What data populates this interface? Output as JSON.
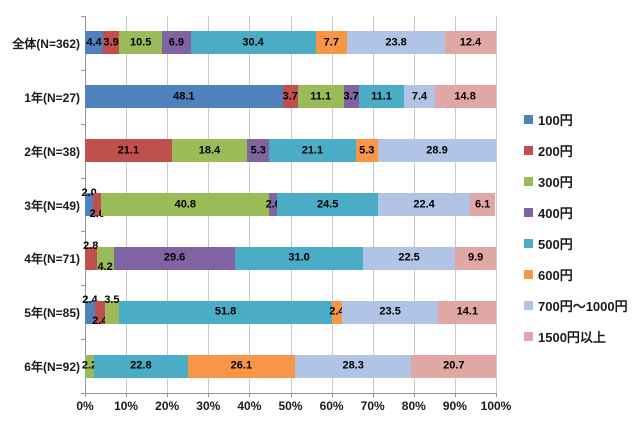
{
  "chart_data": {
    "type": "bar",
    "orientation": "horizontal",
    "stacked": true,
    "unit": "percent",
    "title": "",
    "x_axis": {
      "min": 0,
      "max": 100,
      "grid": true,
      "ticks": [
        "0%",
        "10%",
        "20%",
        "30%",
        "40%",
        "50%",
        "60%",
        "70%",
        "80%",
        "90%",
        "100%"
      ]
    },
    "legend": {
      "position": "right",
      "items": [
        {
          "label": "100円",
          "color": "#4F81BD"
        },
        {
          "label": "200円",
          "color": "#C0504D"
        },
        {
          "label": "300円",
          "color": "#9BBB59"
        },
        {
          "label": "400円",
          "color": "#8064A2"
        },
        {
          "label": "500円",
          "color": "#4BACC6"
        },
        {
          "label": "600円",
          "color": "#F79646"
        },
        {
          "label": "700円～1000円",
          "color": "#B1C4E6"
        },
        {
          "label": "1500円以上",
          "color": "#E0A7A5"
        }
      ]
    },
    "rows": [
      {
        "category": "全体(N=362)",
        "segments": [
          {
            "series": "100円",
            "value": 4.4,
            "label": "4.4"
          },
          {
            "series": "200円",
            "value": 3.9,
            "label": "3.9"
          },
          {
            "series": "300円",
            "value": 10.5,
            "label": "10.5"
          },
          {
            "series": "400円",
            "value": 6.9,
            "label": "6.9"
          },
          {
            "series": "500円",
            "value": 30.4,
            "label": "30.4"
          },
          {
            "series": "600円",
            "value": 7.7,
            "label": "7.7"
          },
          {
            "series": "700円～1000円",
            "value": 23.8,
            "label": "23.8"
          },
          {
            "series": "1500円以上",
            "value": 12.4,
            "label": "12.4"
          }
        ]
      },
      {
        "category": "1年(N=27)",
        "segments": [
          {
            "series": "100円",
            "value": 48.1,
            "label": "48.1"
          },
          {
            "series": "200円",
            "value": 3.7,
            "label": "3.7"
          },
          {
            "series": "300円",
            "value": 11.1,
            "label": "11.1"
          },
          {
            "series": "400円",
            "value": 3.7,
            "label": "3.7"
          },
          {
            "series": "500円",
            "value": 11.1,
            "label": "11.1"
          },
          {
            "series": "700円～1000円",
            "value": 7.4,
            "label": "7.4"
          },
          {
            "series": "1500円以上",
            "value": 14.8,
            "label": "14.8"
          }
        ]
      },
      {
        "category": "2年(N=38)",
        "segments": [
          {
            "series": "200円",
            "value": 21.1,
            "label": "21.1"
          },
          {
            "series": "300円",
            "value": 18.4,
            "label": "18.4"
          },
          {
            "series": "400円",
            "value": 5.3,
            "label": "5.3"
          },
          {
            "series": "500円",
            "value": 21.1,
            "label": "21.1"
          },
          {
            "series": "600円",
            "value": 5.3,
            "label": "5.3"
          },
          {
            "series": "700円～1000円",
            "value": 28.9,
            "label": "28.9"
          }
        ]
      },
      {
        "category": "3年(N=49)",
        "segments": [
          {
            "series": "100円",
            "value": 2.0,
            "label": "2.0",
            "pos": "above"
          },
          {
            "series": "200円",
            "value": 2.0,
            "label": "2.0",
            "pos": "below"
          },
          {
            "series": "300円",
            "value": 40.8,
            "label": "40.8"
          },
          {
            "series": "400円",
            "value": 2.0,
            "label": "2.0"
          },
          {
            "series": "500円",
            "value": 24.5,
            "label": "24.5"
          },
          {
            "series": "700円～1000円",
            "value": 22.4,
            "label": "22.4"
          },
          {
            "series": "1500円以上",
            "value": 6.1,
            "label": "6.1"
          }
        ]
      },
      {
        "category": "4年(N=71)",
        "segments": [
          {
            "series": "200円",
            "value": 2.8,
            "label": "2.8",
            "pos": "above"
          },
          {
            "series": "300円",
            "value": 4.2,
            "label": "4.2",
            "pos": "below"
          },
          {
            "series": "400円",
            "value": 29.6,
            "label": "29.6"
          },
          {
            "series": "500円",
            "value": 31.0,
            "label": "31.0"
          },
          {
            "series": "700円～1000円",
            "value": 22.5,
            "label": "22.5"
          },
          {
            "series": "1500円以上",
            "value": 9.9,
            "label": "9.9"
          }
        ]
      },
      {
        "category": "5年(N=85)",
        "segments": [
          {
            "series": "100円",
            "value": 2.4,
            "label": "2.4",
            "pos": "above"
          },
          {
            "series": "200円",
            "value": 2.4,
            "label": "2.4",
            "pos": "below"
          },
          {
            "series": "300円",
            "value": 3.5,
            "label": "3.5",
            "pos": "above"
          },
          {
            "series": "500円",
            "value": 51.8,
            "label": "51.8"
          },
          {
            "series": "600円",
            "value": 2.4,
            "label": "2.4"
          },
          {
            "series": "700円～1000円",
            "value": 23.5,
            "label": "23.5"
          },
          {
            "series": "1500円以上",
            "value": 14.1,
            "label": "14.1"
          }
        ]
      },
      {
        "category": "6年(N=92)",
        "segments": [
          {
            "series": "300円",
            "value": 2.2,
            "label": "2.2"
          },
          {
            "series": "500円",
            "value": 22.8,
            "label": "22.8"
          },
          {
            "series": "600円",
            "value": 26.1,
            "label": "26.1"
          },
          {
            "series": "700円～1000円",
            "value": 28.3,
            "label": "28.3"
          },
          {
            "series": "1500円以上",
            "value": 20.7,
            "label": "20.7"
          }
        ]
      }
    ]
  }
}
